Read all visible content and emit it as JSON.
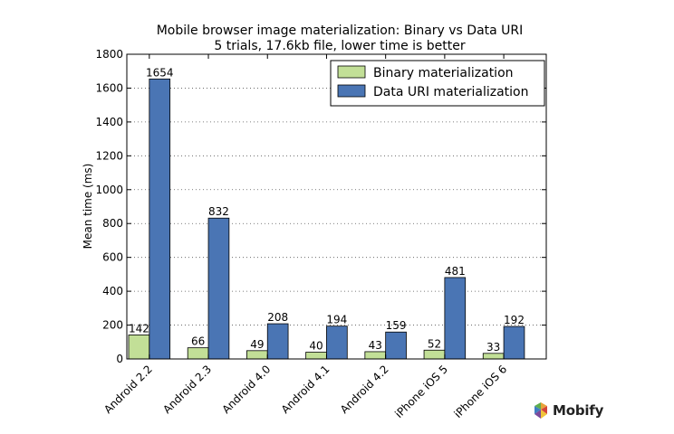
{
  "chart_data": {
    "type": "bar",
    "title": "Mobile browser image materialization: Binary vs Data URI",
    "subtitle": "5 trials, 17.6kb file, lower time is better",
    "xlabel": "",
    "ylabel": "Mean time (ms)",
    "ylim": [
      0,
      1800
    ],
    "yticks": [
      0,
      200,
      400,
      600,
      800,
      1000,
      1200,
      1400,
      1600,
      1800
    ],
    "grid": true,
    "legend_position": "top-right",
    "categories": [
      "Android 2.2",
      "Android 2.3",
      "Android 4.0",
      "Android 4.1",
      "Android 4.2",
      "iPhone iOS 5",
      "iPhone iOS 6"
    ],
    "series": [
      {
        "name": "Binary materialization",
        "color": "#c2df97",
        "values": [
          142,
          66,
          49,
          40,
          43,
          52,
          33
        ]
      },
      {
        "name": "Data URI materialization",
        "color": "#4a75b4",
        "values": [
          1654,
          832,
          208,
          194,
          159,
          481,
          192
        ]
      }
    ]
  },
  "logo": {
    "text": "Mobify",
    "icon": "mobify-logo-icon"
  }
}
